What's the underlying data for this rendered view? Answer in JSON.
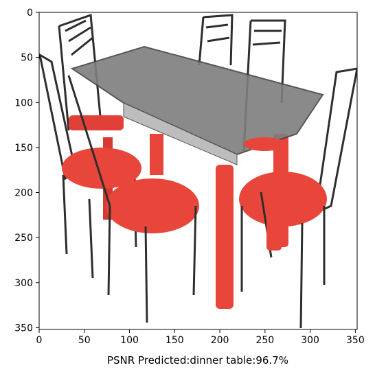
{
  "image": {
    "subject": "dinner table with four red-seated chairs",
    "x_ticks": [
      "0",
      "50",
      "100",
      "150",
      "200",
      "250",
      "300",
      "350"
    ],
    "y_ticks": [
      "0",
      "50",
      "100",
      "150",
      "200",
      "250",
      "300",
      "350"
    ],
    "x_range": [
      0,
      352
    ],
    "y_range": [
      0,
      352
    ],
    "caption": "PSNR Predicted:dinner table:96.7%",
    "colors": {
      "seat_red": "#e8463a",
      "frame_dark": "#2a2a2a",
      "glass_gray": "#8a8a8a",
      "background": "#ffffff"
    }
  }
}
